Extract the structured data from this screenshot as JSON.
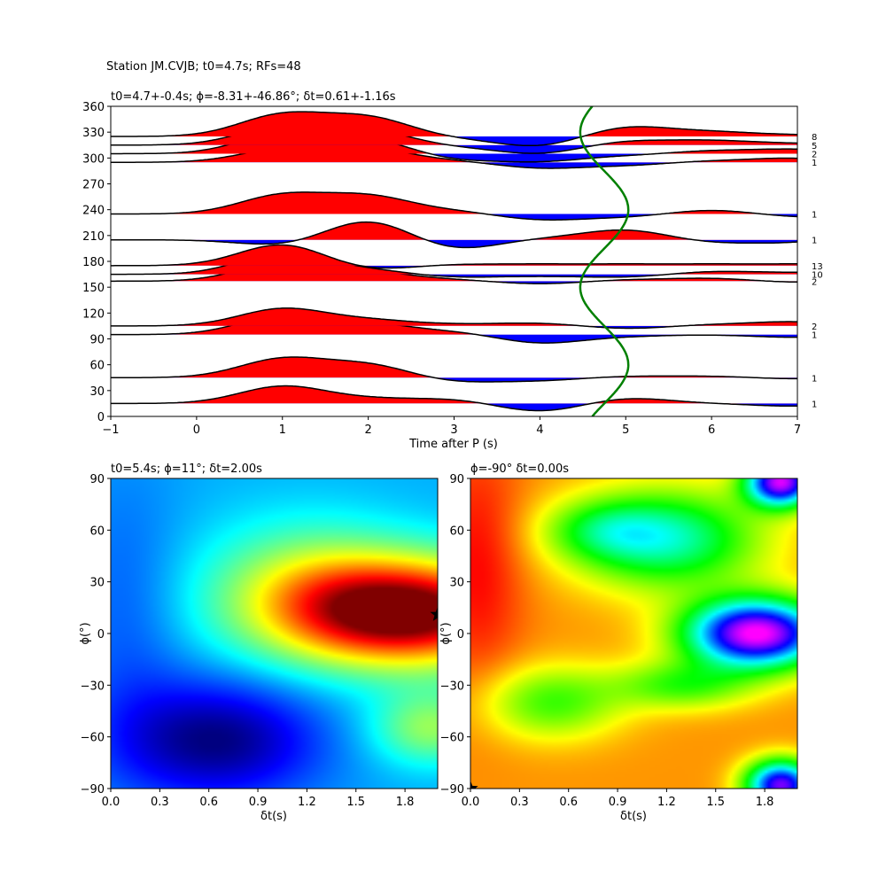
{
  "figure": {
    "suptitle": "Station JM.CVJB; t0=4.7s; RFs=48"
  },
  "chart_data": [
    {
      "type": "line",
      "subtype": "receiver-function wiggle section",
      "title": "t0=4.7+-0.4s; ϕ=-8.31+-46.86°; δt=0.61+-1.16s",
      "xlabel": "Time after P (s)",
      "ylabel": "",
      "xlim": [
        -1,
        7
      ],
      "ylim": [
        0,
        360
      ],
      "xticks": [
        -1,
        0,
        1,
        2,
        3,
        4,
        5,
        6,
        7
      ],
      "yticks": [
        0,
        30,
        60,
        90,
        120,
        150,
        180,
        210,
        240,
        270,
        300,
        330,
        360
      ],
      "fill_colors": {
        "positive": "#ff0000",
        "negative": "#0000ff"
      },
      "traces": [
        {
          "baz": 15,
          "count": "1",
          "a": [
            0,
            0.6,
            0.15,
            0.15,
            -0.3,
            0.2,
            0,
            -0.1,
            0.1
          ]
        },
        {
          "baz": 45,
          "count": "1",
          "a": [
            0,
            0.65,
            0.45,
            -0.15,
            -0.1,
            0.05,
            0.05,
            -0.05,
            0.05
          ]
        },
        {
          "baz": 95,
          "count": "1",
          "a": [
            0,
            0.65,
            0.35,
            0.1,
            -0.3,
            -0.05,
            0,
            -0.1,
            0.05
          ]
        },
        {
          "baz": 105,
          "count": "2",
          "a": [
            0,
            0.6,
            0.2,
            0.05,
            0.1,
            -0.1,
            0.05,
            0.15,
            -0.05
          ]
        },
        {
          "baz": 157,
          "count": "2",
          "a": [
            0,
            0.65,
            0.3,
            0.05,
            -0.1,
            0.05,
            0.1,
            -0.05,
            0.05
          ]
        },
        {
          "baz": 165,
          "count": "10",
          "a": [
            0,
            0.75,
            0.15,
            -0.1,
            -0.05,
            -0.1,
            0.1,
            0.05,
            0.05
          ]
        },
        {
          "baz": 175,
          "count": "13",
          "a": [
            0,
            0.75,
            -0.15,
            0.05,
            0.05,
            0.05,
            0.05,
            0.05,
            0.05
          ]
        },
        {
          "baz": 205,
          "count": "1",
          "a": [
            0,
            -0.2,
            0.7,
            -0.35,
            0.05,
            0.35,
            -0.1,
            -0.1,
            0.3
          ]
        },
        {
          "baz": 235,
          "count": "1",
          "a": [
            0,
            0.65,
            0.6,
            0.1,
            -0.2,
            -0.1,
            0.15,
            -0.1,
            -0.1
          ]
        },
        {
          "baz": 295,
          "count": "1",
          "a": [
            0,
            0.45,
            0.45,
            0.05,
            -0.2,
            -0.1,
            0.05,
            0.15,
            -0.1
          ]
        },
        {
          "baz": 305,
          "count": "2",
          "a": [
            0,
            0.7,
            0.5,
            -0.2,
            -0.25,
            -0.05,
            0.1,
            0.15,
            0
          ]
        },
        {
          "baz": 315,
          "count": "5",
          "a": [
            0,
            0.65,
            0.5,
            -0.05,
            -0.3,
            0.15,
            0.15,
            0.05,
            0
          ]
        },
        {
          "baz": 325,
          "count": "8",
          "a": [
            0,
            0.75,
            0.65,
            -0.05,
            -0.35,
            0.35,
            0.15,
            0.05,
            0
          ]
        }
      ],
      "model_curve": {
        "color": "#008000",
        "t_center": 4.75,
        "amplitude": 0.28,
        "period_deg": 180
      }
    },
    {
      "type": "heatmap",
      "title": "t0=5.4s; ϕ=11°; δt=2.00s",
      "xlabel": "δt(s)",
      "ylabel": "ϕ(°)",
      "xlim": [
        0,
        2
      ],
      "ylim": [
        -90,
        90
      ],
      "xticks": [
        "0.0",
        "0.3",
        "0.6",
        "0.9",
        "1.2",
        "1.5",
        "1.8"
      ],
      "yticks": [
        "90",
        "60",
        "30",
        "0",
        "−30",
        "−60",
        "−90"
      ],
      "colormap": "jet",
      "best_fit": {
        "dt": 2.0,
        "phi": 11
      },
      "features": [
        {
          "kind": "maximum",
          "dt": 1.85,
          "phi": 12,
          "value": 1.0
        },
        {
          "kind": "minimum",
          "dt": 0.65,
          "phi": -62,
          "value": 0.0
        }
      ]
    },
    {
      "type": "heatmap",
      "title": "ϕ=-90° δt=0.00s",
      "xlabel": "δt(s)",
      "ylabel": "ϕ(°)",
      "xlim": [
        0,
        2
      ],
      "ylim": [
        -90,
        90
      ],
      "xticks": [
        "0.0",
        "0.3",
        "0.6",
        "0.9",
        "1.2",
        "1.5",
        "1.8"
      ],
      "yticks": [
        "90",
        "60",
        "30",
        "0",
        "−30",
        "−60",
        "−90"
      ],
      "colormap": "hsv",
      "best_fit": {
        "dt": 0.0,
        "phi": -90
      },
      "features": [
        {
          "kind": "maximum",
          "dt": 1.75,
          "phi": 0,
          "value": 0.85
        },
        {
          "kind": "high",
          "dt": 1.9,
          "phi": 88,
          "value": 0.8
        },
        {
          "kind": "minimum",
          "dt": 0.05,
          "phi": 40,
          "value": 0.0
        }
      ]
    }
  ]
}
